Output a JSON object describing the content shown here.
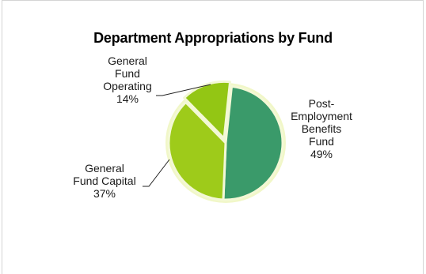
{
  "chart_data": {
    "type": "pie",
    "title": "Department Appropriations by Fund",
    "slices": [
      {
        "label": "Post-Employment Benefits Fund",
        "label_lines": [
          "Post-",
          "Employment",
          "Benefits",
          "Fund"
        ],
        "value": 49,
        "value_label": "49%",
        "color": "#3a9a6a"
      },
      {
        "label": "General Fund Capital",
        "label_lines": [
          "General",
          "Fund Capital"
        ],
        "value": 37,
        "value_label": "37%",
        "color": "#9ecb1a"
      },
      {
        "label": "General Fund Operating",
        "label_lines": [
          "General",
          "Fund",
          "Operating"
        ],
        "value": 14,
        "value_label": "14%",
        "color": "#93c614"
      }
    ],
    "legend": "none",
    "colors": {
      "glow": "#f1f7c8",
      "separator": "#f3f8d6"
    }
  }
}
